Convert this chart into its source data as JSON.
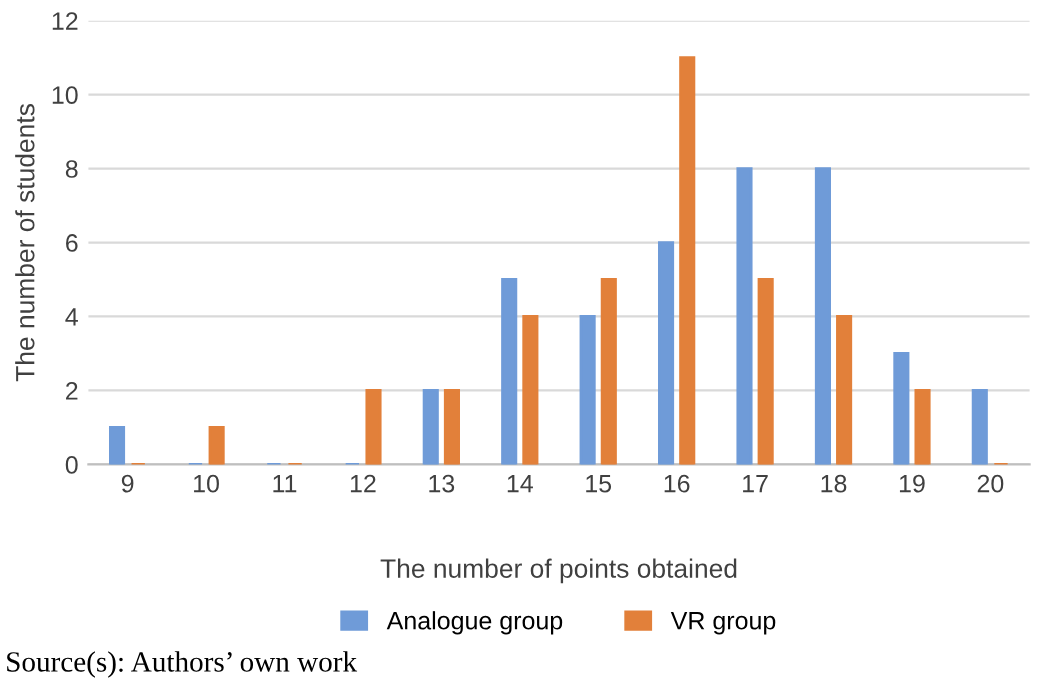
{
  "chart_data": {
    "type": "bar",
    "categories": [
      "9",
      "10",
      "11",
      "12",
      "13",
      "14",
      "15",
      "16",
      "17",
      "18",
      "19",
      "20"
    ],
    "series": [
      {
        "name": "Analogue group",
        "color": "#6f9bd8",
        "values": [
          1,
          0,
          0,
          0,
          2,
          5,
          4,
          6,
          8,
          8,
          3,
          2
        ]
      },
      {
        "name": "VR group",
        "color": "#e2803a",
        "values": [
          0,
          1,
          0,
          2,
          2,
          4,
          5,
          11,
          5,
          4,
          2,
          0
        ]
      }
    ],
    "xlabel": "The number of points obtained",
    "ylabel": "The number of students",
    "ylim": [
      0,
      12
    ],
    "yticks": [
      0,
      2,
      4,
      6,
      8,
      10,
      12
    ],
    "grid": "y",
    "legend": "bottom",
    "annotations": [
      "Source(s): Authors’ own work"
    ]
  }
}
